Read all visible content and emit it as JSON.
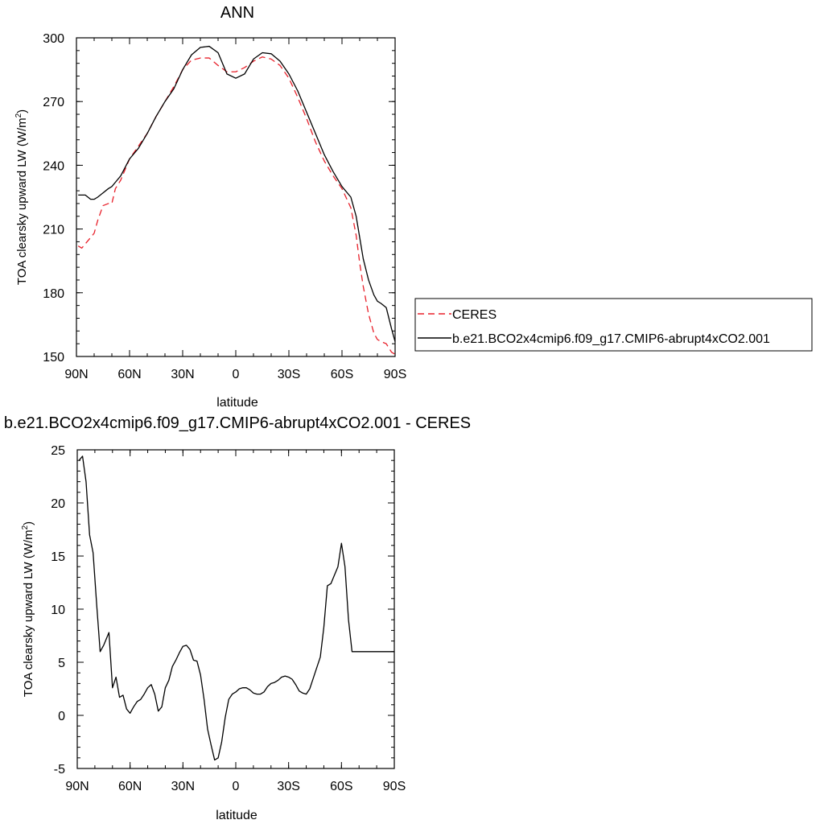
{
  "chart_data": [
    {
      "type": "line",
      "title": "ANN",
      "xlabel": "latitude",
      "ylabel": "TOA clearsky upward LW (W/m",
      "ylabel_sup": "2",
      "ylabel_close": ")",
      "xlim": [
        -90,
        90
      ],
      "ylim": [
        150,
        300
      ],
      "xticks": [
        -90,
        -60,
        -30,
        0,
        30,
        60,
        90
      ],
      "xticklabels": [
        "90N",
        "60N",
        "30N",
        "0",
        "30S",
        "60S",
        "90S"
      ],
      "yticks": [
        150,
        180,
        210,
        240,
        270,
        300
      ],
      "yticklabels": [
        "150",
        "180",
        "210",
        "240",
        "270",
        "300"
      ],
      "legend_position": "right",
      "series": [
        {
          "name": "CERES",
          "color": "#e8202a",
          "dash": true,
          "x": [
            -89,
            -87,
            -82,
            -80,
            -78,
            -75,
            -72,
            -70,
            -68,
            -65,
            -60,
            -55,
            -50,
            -45,
            -40,
            -35,
            -30,
            -25,
            -20,
            -15,
            -10,
            -5,
            0,
            5,
            10,
            15,
            20,
            25,
            30,
            35,
            40,
            45,
            50,
            55,
            60,
            65,
            68,
            70,
            72,
            75,
            78,
            80,
            82,
            85,
            88,
            90
          ],
          "y": [
            202,
            201,
            206,
            208,
            214,
            221,
            222,
            222,
            229,
            233,
            243,
            249,
            255,
            263,
            270,
            277,
            285,
            289.5,
            290.5,
            290.5,
            287,
            284,
            284,
            286,
            289,
            291,
            290,
            287,
            281,
            272,
            262,
            251,
            242,
            235,
            229,
            220,
            207,
            194,
            183,
            170,
            161,
            158,
            157,
            156,
            152,
            151
          ]
        },
        {
          "name": "b.e21.BCO2x4cmip6.f09_g17.CMIP6-abrupt4xCO2.001",
          "color": "#000000",
          "dash": false,
          "x": [
            -89,
            -85,
            -82,
            -80,
            -78,
            -75,
            -72,
            -70,
            -68,
            -65,
            -60,
            -55,
            -50,
            -45,
            -40,
            -35,
            -30,
            -25,
            -20,
            -15,
            -10,
            -5,
            0,
            5,
            10,
            15,
            20,
            25,
            30,
            35,
            40,
            45,
            50,
            55,
            60,
            65,
            68,
            70,
            72,
            75,
            78,
            80,
            82,
            85,
            88,
            90
          ],
          "y": [
            226,
            226,
            224,
            224,
            225,
            227,
            229,
            230,
            232,
            235,
            243,
            248,
            255,
            263,
            270,
            276,
            285,
            292,
            295.5,
            296,
            293,
            283,
            281,
            283,
            290,
            293,
            292.5,
            289,
            283,
            275,
            265,
            255,
            245,
            237,
            230,
            225,
            216,
            206,
            196,
            186,
            179,
            176,
            175,
            173,
            163,
            157
          ]
        }
      ]
    },
    {
      "type": "line",
      "title": "b.e21.BCO2x4cmip6.f09_g17.CMIP6-abrupt4xCO2.001 - CERES",
      "xlabel": "latitude",
      "ylabel": "TOA clearsky upward LW (W/m",
      "ylabel_sup": "2",
      "ylabel_close": ")",
      "xlim": [
        -90,
        90
      ],
      "ylim": [
        -5,
        25
      ],
      "xticks": [
        -90,
        -60,
        -30,
        0,
        30,
        60,
        90
      ],
      "xticklabels": [
        "90N",
        "60N",
        "30N",
        "0",
        "30S",
        "60S",
        "90S"
      ],
      "yticks": [
        -5,
        0,
        5,
        10,
        15,
        20,
        25
      ],
      "yticklabels": [
        "-5",
        "0",
        "5",
        "10",
        "15",
        "20",
        "25"
      ],
      "series": [
        {
          "color": "#000000",
          "x": [
            -89,
            -87,
            -85,
            -83,
            -81,
            -79,
            -77,
            -75,
            -72,
            -70,
            -68,
            -66,
            -64,
            -62,
            -60,
            -58,
            -56,
            -54,
            -52,
            -50,
            -48,
            -46,
            -44,
            -42,
            -40,
            -38,
            -36,
            -34,
            -32,
            -30,
            -28,
            -26,
            -24,
            -22,
            -20,
            -18,
            -16,
            -14,
            -12,
            -10,
            -8,
            -6,
            -4,
            -2,
            0,
            2,
            4,
            6,
            8,
            10,
            12,
            14,
            16,
            18,
            20,
            22,
            24,
            26,
            28,
            30,
            32,
            34,
            36,
            38,
            40,
            42,
            44,
            46,
            48,
            50,
            52,
            54,
            56,
            58,
            60,
            62,
            64,
            66,
            68,
            70,
            72,
            74,
            76,
            78,
            80,
            82,
            84,
            86,
            88,
            90
          ],
          "y": [
            24,
            24.4,
            22,
            17,
            15.3,
            10.5,
            6,
            6.6,
            7.8,
            2.6,
            3.6,
            1.7,
            1.9,
            0.6,
            0.2,
            0.8,
            1.3,
            1.5,
            2.0,
            2.6,
            2.9,
            2.0,
            0.4,
            0.8,
            2.6,
            3.3,
            4.6,
            5.2,
            5.9,
            6.5,
            6.6,
            6.2,
            5.2,
            5.1,
            3.8,
            1.5,
            -1.3,
            -2.8,
            -4.2,
            -4.0,
            -2.5,
            -0.2,
            1.5,
            2.0,
            2.2,
            2.5,
            2.6,
            2.6,
            2.4,
            2.1,
            2.0,
            2.0,
            2.2,
            2.7,
            3.0,
            3.1,
            3.3,
            3.6,
            3.7,
            3.6,
            3.4,
            2.9,
            2.3,
            2.1,
            2.0,
            2.5,
            3.5,
            4.5,
            5.5,
            8.3,
            12.2,
            12.4,
            13.2,
            14.0,
            16.2,
            14.0,
            9.0,
            6.0,
            6.0,
            6.0,
            6.0,
            6.0,
            6.0,
            6.0,
            6.0,
            6.0,
            6.0,
            6.0,
            6.0,
            6.0
          ]
        }
      ]
    }
  ]
}
